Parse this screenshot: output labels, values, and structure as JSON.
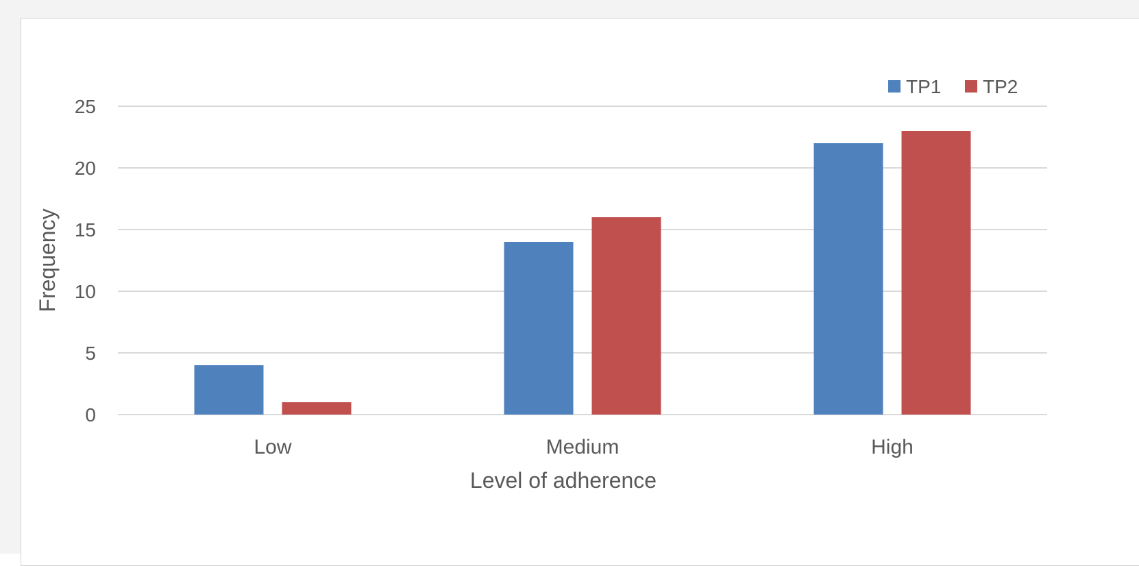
{
  "chart_data": {
    "type": "bar",
    "title": "",
    "xlabel": "Level of adherence",
    "ylabel": "Frequency",
    "categories": [
      "Low",
      "Medium",
      "High"
    ],
    "series": [
      {
        "name": "TP1",
        "values": [
          4,
          14,
          22
        ],
        "color": "#4f81bd"
      },
      {
        "name": "TP2",
        "values": [
          1,
          16,
          23
        ],
        "color": "#c0504d"
      }
    ],
    "ylim": [
      0,
      25
    ],
    "yticks": [
      0,
      5,
      10,
      15,
      20,
      25
    ],
    "grid": true,
    "legend_position": "top-right"
  }
}
